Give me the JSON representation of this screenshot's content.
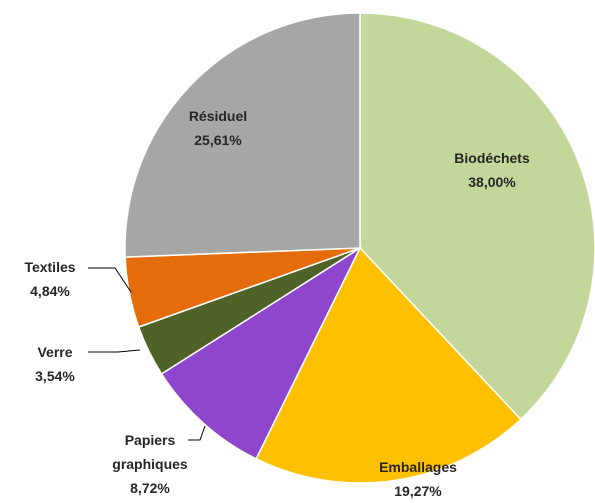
{
  "chart_data": {
    "type": "pie",
    "categories": [
      "Biodéchets",
      "Emballages",
      "Papiers graphiques",
      "Verre",
      "Textiles",
      "Résiduel"
    ],
    "values": [
      38.0,
      19.27,
      8.72,
      3.54,
      4.84,
      25.61
    ],
    "value_labels": [
      "38,00%",
      "19,27%",
      "8,72%",
      "3,54%",
      "4,84%",
      "25,61%"
    ],
    "colors": [
      "#c4d79b",
      "#ffc000",
      "#8e47cc",
      "#4f6228",
      "#e46c0a",
      "#a6a6a6"
    ]
  }
}
